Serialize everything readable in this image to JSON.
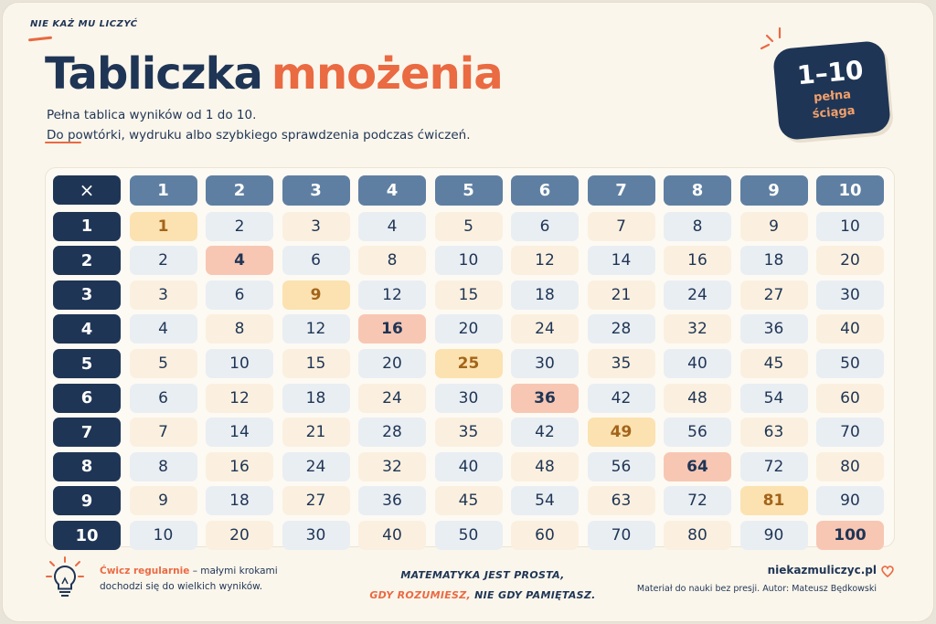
{
  "brand": "NIE KAŻ MU LICZYĆ",
  "title": {
    "part1": "Tabliczka",
    "part2": "mnożenia"
  },
  "subtitle": {
    "line1": "Pełna tablica wyników od 1 do 10.",
    "line2": "Do powtórki, wydruku albo szybkiego sprawdzenia podczas ćwiczeń."
  },
  "badge": {
    "range": "1–10",
    "line1": "pełna",
    "line2": "ściąga"
  },
  "table": {
    "corner": "×",
    "columns": [
      "1",
      "2",
      "3",
      "4",
      "5",
      "6",
      "7",
      "8",
      "9",
      "10"
    ],
    "rows": [
      {
        "label": "1",
        "values": [
          "1",
          "2",
          "3",
          "4",
          "5",
          "6",
          "7",
          "8",
          "9",
          "10"
        ]
      },
      {
        "label": "2",
        "values": [
          "2",
          "4",
          "6",
          "8",
          "10",
          "12",
          "14",
          "16",
          "18",
          "20"
        ]
      },
      {
        "label": "3",
        "values": [
          "3",
          "6",
          "9",
          "12",
          "15",
          "18",
          "21",
          "24",
          "27",
          "30"
        ]
      },
      {
        "label": "4",
        "values": [
          "4",
          "8",
          "12",
          "16",
          "20",
          "24",
          "28",
          "32",
          "36",
          "40"
        ]
      },
      {
        "label": "5",
        "values": [
          "5",
          "10",
          "15",
          "20",
          "25",
          "30",
          "35",
          "40",
          "45",
          "50"
        ]
      },
      {
        "label": "6",
        "values": [
          "6",
          "12",
          "18",
          "24",
          "30",
          "36",
          "42",
          "48",
          "54",
          "60"
        ]
      },
      {
        "label": "7",
        "values": [
          "7",
          "14",
          "21",
          "28",
          "35",
          "42",
          "49",
          "56",
          "63",
          "70"
        ]
      },
      {
        "label": "8",
        "values": [
          "8",
          "16",
          "24",
          "32",
          "40",
          "48",
          "56",
          "64",
          "72",
          "80"
        ]
      },
      {
        "label": "9",
        "values": [
          "9",
          "18",
          "27",
          "36",
          "45",
          "54",
          "63",
          "72",
          "81",
          "90"
        ]
      },
      {
        "label": "10",
        "values": [
          "10",
          "20",
          "30",
          "40",
          "50",
          "60",
          "70",
          "80",
          "90",
          "100"
        ]
      }
    ]
  },
  "footer": {
    "tip_highlight": "Ćwicz regularnie",
    "tip_rest": " – małymi krokami dochodzi się do wielkich wyników.",
    "motto_line1": "MATEMATYKA JEST PROSTA,",
    "motto_highlight": "GDY ROZUMIESZ,",
    "motto_rest": " NIE GDY PAMIĘTASZ.",
    "site": "niekazmuliczyc.pl",
    "author": "Materiał do nauki bez presji. Autor: Mateusz Będkowski"
  },
  "colors": {
    "navy": "#1f3555",
    "accent": "#ea6a42",
    "header_blue": "#5f7fa2",
    "cream": "#fbf0df",
    "light_blue": "#e9eef3",
    "diag_yellow": "#fbe2b0",
    "diag_peach": "#f7c7b4"
  }
}
